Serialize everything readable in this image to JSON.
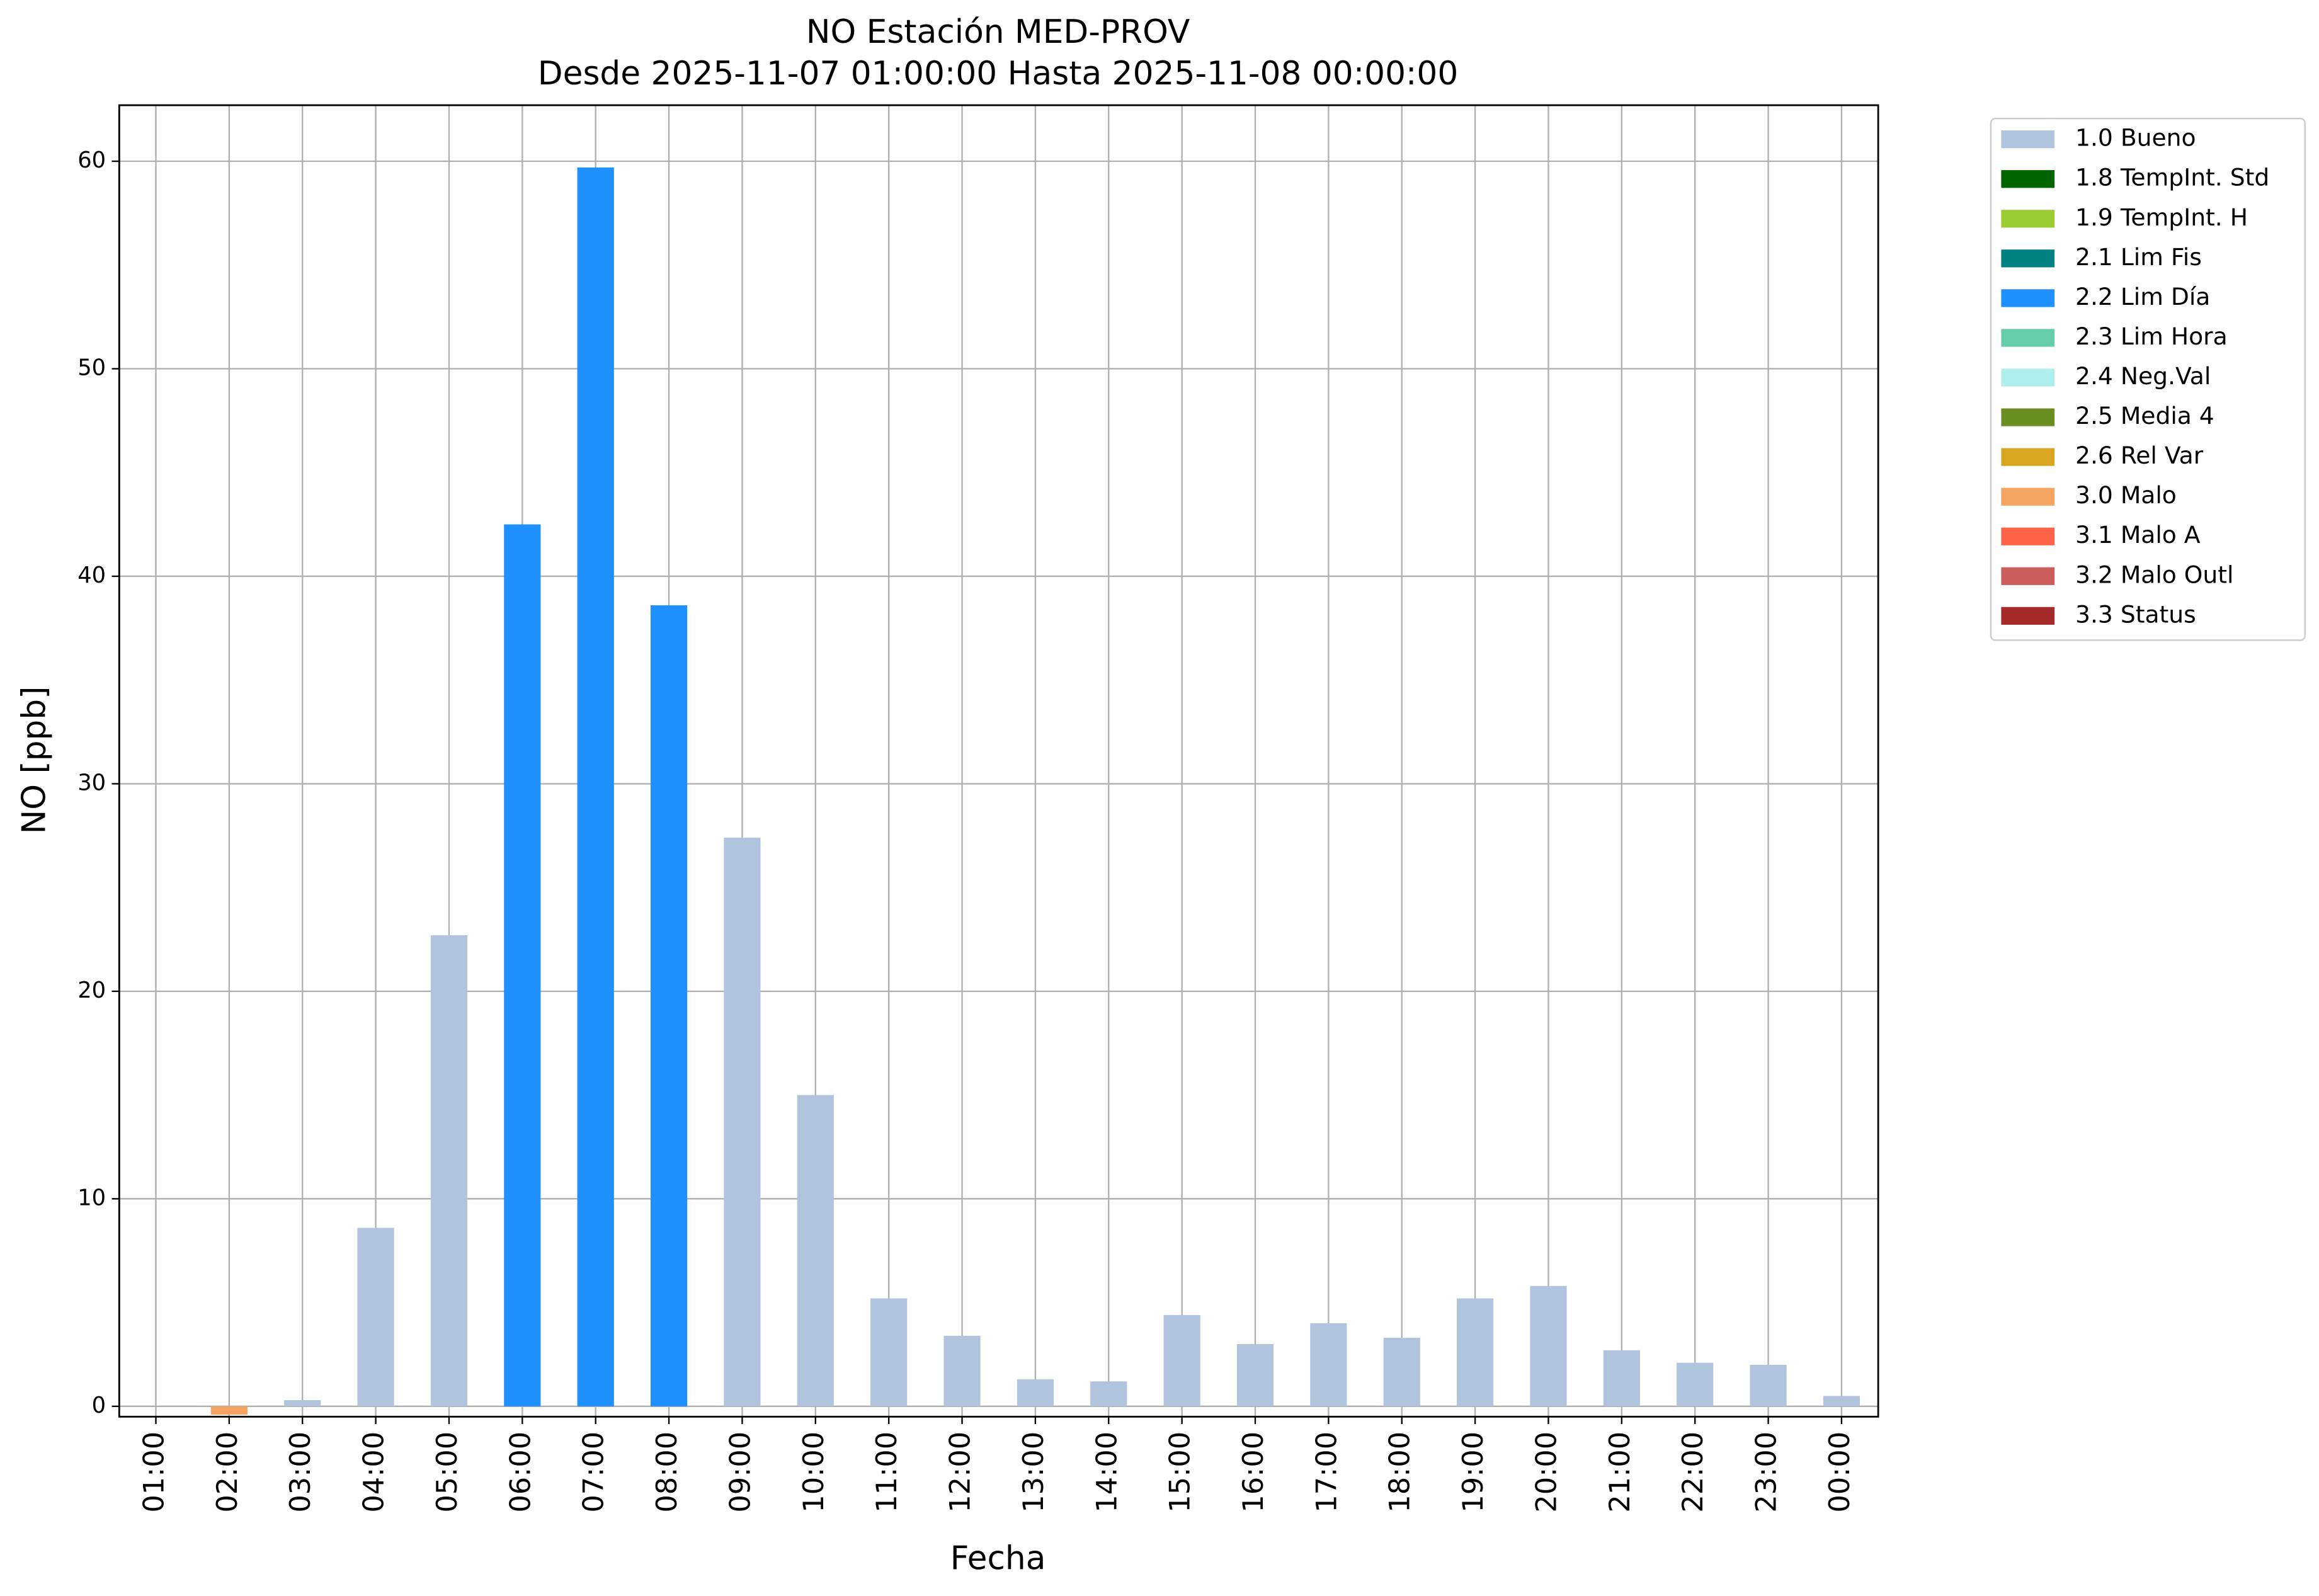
{
  "chart_data": {
    "type": "bar",
    "stacked": true,
    "title": "NO Estación MED-PROV",
    "subtitle": "Desde 2025-11-07 01:00:00 Hasta 2025-11-08 00:00:00",
    "x_label": "Fecha",
    "y_label": "NO [ppb]",
    "categories": [
      "01:00",
      "02:00",
      "03:00",
      "04:00",
      "05:00",
      "06:00",
      "07:00",
      "08:00",
      "09:00",
      "10:00",
      "11:00",
      "12:00",
      "13:00",
      "14:00",
      "15:00",
      "16:00",
      "17:00",
      "18:00",
      "19:00",
      "20:00",
      "21:00",
      "22:00",
      "23:00",
      "00:00"
    ],
    "series": [
      {
        "name": "1.0 Bueno",
        "color": "#b0c4de",
        "values": [
          null,
          null,
          0.3,
          8.6,
          22.7,
          null,
          null,
          null,
          27.4,
          15.0,
          5.2,
          3.4,
          1.3,
          1.2,
          4.4,
          3.0,
          4.0,
          3.3,
          5.2,
          5.8,
          2.7,
          2.1,
          2.0,
          0.5
        ]
      },
      {
        "name": "1.8 TempInt. Std",
        "color": "#006400",
        "values": [
          null,
          null,
          null,
          null,
          null,
          null,
          null,
          null,
          null,
          null,
          null,
          null,
          null,
          null,
          null,
          null,
          null,
          null,
          null,
          null,
          null,
          null,
          null,
          null
        ]
      },
      {
        "name": "1.9 TempInt. H",
        "color": "#9acd32",
        "values": [
          null,
          null,
          null,
          null,
          null,
          null,
          null,
          null,
          null,
          null,
          null,
          null,
          null,
          null,
          null,
          null,
          null,
          null,
          null,
          null,
          null,
          null,
          null,
          null
        ]
      },
      {
        "name": "2.1 Lim Fis",
        "color": "#008080",
        "values": [
          null,
          null,
          null,
          null,
          null,
          null,
          null,
          null,
          null,
          null,
          null,
          null,
          null,
          null,
          null,
          null,
          null,
          null,
          null,
          null,
          null,
          null,
          null,
          null
        ]
      },
      {
        "name": "2.2 Lim Día",
        "color": "#1e90ff",
        "values": [
          null,
          null,
          null,
          null,
          null,
          42.5,
          59.7,
          38.6,
          null,
          null,
          null,
          null,
          null,
          null,
          null,
          null,
          null,
          null,
          null,
          null,
          null,
          null,
          null,
          null
        ]
      },
      {
        "name": "2.3 Lim Hora",
        "color": "#66cdaa",
        "values": [
          null,
          null,
          null,
          null,
          null,
          null,
          null,
          null,
          null,
          null,
          null,
          null,
          null,
          null,
          null,
          null,
          null,
          null,
          null,
          null,
          null,
          null,
          null,
          null
        ]
      },
      {
        "name": "2.4 Neg.Val",
        "color": "#afeeee",
        "values": [
          null,
          null,
          null,
          null,
          null,
          null,
          null,
          null,
          null,
          null,
          null,
          null,
          null,
          null,
          null,
          null,
          null,
          null,
          null,
          null,
          null,
          null,
          null,
          null
        ]
      },
      {
        "name": "2.5 Media 4",
        "color": "#6b8e23",
        "values": [
          null,
          null,
          null,
          null,
          null,
          null,
          null,
          null,
          null,
          null,
          null,
          null,
          null,
          null,
          null,
          null,
          null,
          null,
          null,
          null,
          null,
          null,
          null,
          null
        ]
      },
      {
        "name": "2.6 Rel Var",
        "color": "#daa520",
        "values": [
          null,
          null,
          null,
          null,
          null,
          null,
          null,
          null,
          null,
          null,
          null,
          null,
          null,
          null,
          null,
          null,
          null,
          null,
          null,
          null,
          null,
          null,
          null,
          null
        ]
      },
      {
        "name": "3.0 Malo",
        "color": "#f4a460",
        "values": [
          null,
          -0.4,
          null,
          null,
          null,
          null,
          null,
          null,
          null,
          null,
          null,
          null,
          null,
          null,
          null,
          null,
          null,
          null,
          null,
          null,
          null,
          null,
          null,
          null
        ]
      },
      {
        "name": "3.1 Malo A",
        "color": "#ff6347",
        "values": [
          null,
          null,
          null,
          null,
          null,
          null,
          null,
          null,
          null,
          null,
          null,
          null,
          null,
          null,
          null,
          null,
          null,
          null,
          null,
          null,
          null,
          null,
          null,
          null
        ]
      },
      {
        "name": "3.2 Malo Outl",
        "color": "#cd5c5c",
        "values": [
          null,
          null,
          null,
          null,
          null,
          null,
          null,
          null,
          null,
          null,
          null,
          null,
          null,
          null,
          null,
          null,
          null,
          null,
          null,
          null,
          null,
          null,
          null,
          null
        ]
      },
      {
        "name": "3.3 Status",
        "color": "#a52a2a",
        "values": [
          null,
          null,
          null,
          null,
          null,
          null,
          null,
          null,
          null,
          null,
          null,
          null,
          null,
          null,
          null,
          null,
          null,
          null,
          null,
          null,
          null,
          null,
          null,
          null
        ]
      }
    ],
    "ylim": [
      -0.5,
      62.7
    ],
    "yticks": [
      0,
      10,
      20,
      30,
      40,
      50,
      60
    ],
    "grid": true,
    "legend_position": "right"
  }
}
